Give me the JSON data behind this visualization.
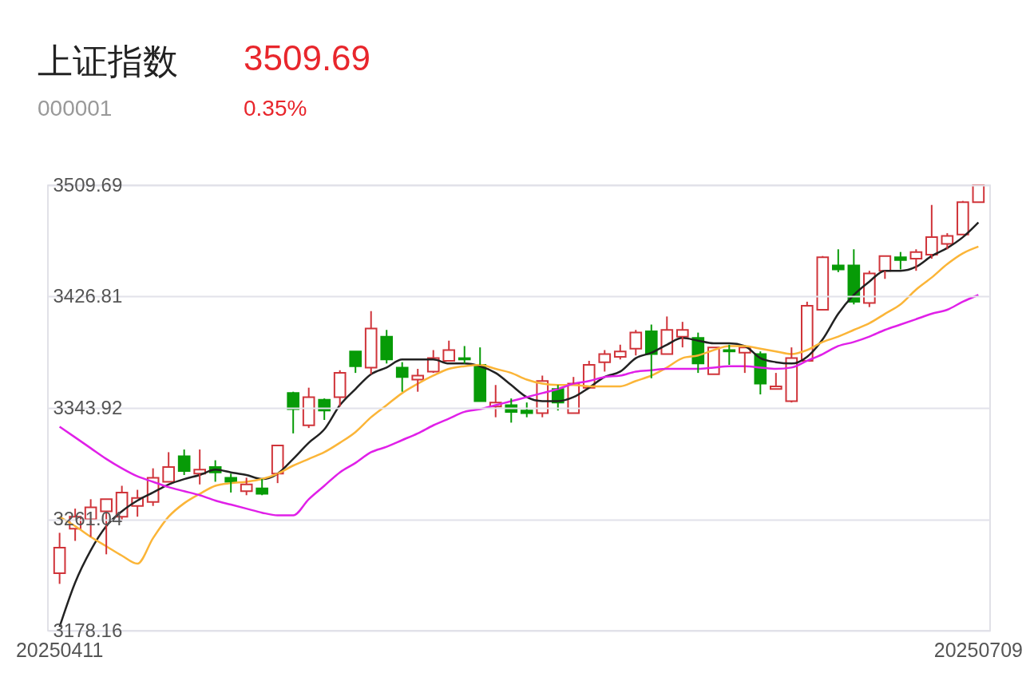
{
  "chart_data": {
    "type": "candlestick",
    "title": "上证指数",
    "subtitle": "000001",
    "annotations": [
      "3509.69",
      "0.35%"
    ],
    "categories": [
      "20250411",
      null,
      null,
      null,
      null,
      null,
      null,
      null,
      null,
      null,
      null,
      null,
      null,
      null,
      null,
      null,
      null,
      null,
      null,
      null,
      null,
      null,
      null,
      null,
      null,
      null,
      null,
      null,
      null,
      null,
      null,
      null,
      null,
      null,
      null,
      null,
      null,
      null,
      null,
      null,
      null,
      null,
      null,
      null,
      null,
      null,
      null,
      null,
      null,
      null,
      null,
      null,
      null,
      null,
      null,
      null,
      null,
      null,
      null,
      "20250709"
    ],
    "ohlc": [
      [
        3221,
        3251,
        3213,
        3240
      ],
      [
        3254,
        3269,
        3245,
        3263
      ],
      [
        3261,
        3276,
        3248,
        3270
      ],
      [
        3267,
        3276,
        3235,
        3276
      ],
      [
        3263,
        3286,
        3260,
        3281
      ],
      [
        3271,
        3283,
        3263,
        3277
      ],
      [
        3274,
        3299,
        3271,
        3292
      ],
      [
        3289,
        3311,
        3289,
        3300
      ],
      [
        3308,
        3313,
        3294,
        3297
      ],
      [
        3295,
        3313,
        3287,
        3298
      ],
      [
        3300,
        3305,
        3289,
        3296
      ],
      [
        3292,
        3295,
        3281,
        3289
      ],
      [
        3282,
        3292,
        3279,
        3287
      ],
      [
        3284,
        3291,
        3279,
        3280
      ],
      [
        3295,
        3316,
        3288,
        3316
      ],
      [
        3355,
        3356,
        3325,
        3343
      ],
      [
        3331,
        3359,
        3329,
        3352
      ],
      [
        3350,
        3351,
        3335,
        3342
      ],
      [
        3352,
        3372,
        3345,
        3370
      ],
      [
        3386,
        3386,
        3370,
        3375
      ],
      [
        3374,
        3416,
        3369,
        3403
      ],
      [
        3397,
        3402,
        3377,
        3380
      ],
      [
        3374,
        3378,
        3356,
        3367
      ],
      [
        3365,
        3373,
        3356,
        3368
      ],
      [
        3371,
        3387,
        3370,
        3381
      ],
      [
        3379,
        3394,
        3379,
        3387
      ],
      [
        3381,
        3390,
        3377,
        3380
      ],
      [
        3376,
        3389,
        3349,
        3349
      ],
      [
        3345,
        3361,
        3337,
        3348
      ],
      [
        3346,
        3351,
        3333,
        3341
      ],
      [
        3342,
        3348,
        3337,
        3340
      ],
      [
        3340,
        3368,
        3337,
        3364
      ],
      [
        3358,
        3361,
        3342,
        3348
      ],
      [
        3340,
        3367,
        3340,
        3362
      ],
      [
        3359,
        3379,
        3359,
        3376
      ],
      [
        3378,
        3387,
        3371,
        3384
      ],
      [
        3382,
        3391,
        3380,
        3386
      ],
      [
        3388,
        3402,
        3383,
        3400
      ],
      [
        3401,
        3406,
        3366,
        3384
      ],
      [
        3384,
        3412,
        3384,
        3402
      ],
      [
        3397,
        3408,
        3389,
        3402
      ],
      [
        3396,
        3400,
        3370,
        3377
      ],
      [
        3369,
        3389,
        3369,
        3389
      ],
      [
        3387,
        3391,
        3376,
        3386
      ],
      [
        3385,
        3389,
        3370,
        3389
      ],
      [
        3384,
        3386,
        3354,
        3362
      ],
      [
        3358,
        3370,
        3358,
        3360
      ],
      [
        3349,
        3389,
        3348,
        3381
      ],
      [
        3379,
        3423,
        3379,
        3420
      ],
      [
        3417,
        3457,
        3417,
        3456
      ],
      [
        3450,
        3462,
        3445,
        3447
      ],
      [
        3450,
        3462,
        3421,
        3423
      ],
      [
        3422,
        3446,
        3419,
        3444
      ],
      [
        3446,
        3457,
        3440,
        3457
      ],
      [
        3456,
        3460,
        3447,
        3454
      ],
      [
        3455,
        3462,
        3446,
        3460
      ],
      [
        3458,
        3495,
        3455,
        3471
      ],
      [
        3466,
        3474,
        3462,
        3472
      ],
      [
        3473,
        3498,
        3473,
        3497
      ],
      [
        3497,
        3509.69,
        3497,
        3509.69
      ]
    ],
    "colors": [
      "#d0343a",
      "#d0343a",
      "#d0343a",
      "#d0343a",
      "#d0343a",
      "#d0343a",
      "#d0343a",
      "#d0343a",
      "#079b07",
      "#d0343a",
      "#079b07",
      "#079b07",
      "#d0343a",
      "#079b07",
      "#d0343a",
      "#079b07",
      "#d0343a",
      "#079b07",
      "#d0343a",
      "#079b07",
      "#d0343a",
      "#079b07",
      "#079b07",
      "#d0343a",
      "#d0343a",
      "#d0343a",
      "#079b07",
      "#079b07",
      "#d0343a",
      "#079b07",
      "#079b07",
      "#d0343a",
      "#079b07",
      "#d0343a",
      "#d0343a",
      "#d0343a",
      "#d0343a",
      "#d0343a",
      "#079b07",
      "#d0343a",
      "#d0343a",
      "#079b07",
      "#d0343a",
      "#079b07",
      "#d0343a",
      "#079b07",
      "#d0343a",
      "#d0343a",
      "#d0343a",
      "#d0343a",
      "#079b07",
      "#079b07",
      "#d0343a",
      "#d0343a",
      "#079b07",
      "#d0343a",
      "#d0343a",
      "#d0343a",
      "#d0343a",
      "#d0343a"
    ],
    "series": [
      {
        "type": "line",
        "color": "#222222",
        "values": [
          3181,
          3214,
          3238,
          3256,
          3267,
          3275,
          3281,
          3287,
          3291,
          3294,
          3298,
          3296,
          3294,
          3291,
          3295,
          3306,
          3318,
          3328,
          3346,
          3358,
          3369,
          3374,
          3380,
          3380,
          3380,
          3377,
          3377,
          3375,
          3370,
          3361,
          3352,
          3349,
          3349,
          3352,
          3359,
          3367,
          3371,
          3381,
          3385,
          3391,
          3396,
          3394,
          3392,
          3392,
          3390,
          3381,
          3378,
          3377,
          3382,
          3395,
          3414,
          3428,
          3438,
          3446,
          3446,
          3449,
          3457,
          3463,
          3471,
          3482
        ]
      },
      {
        "type": "line",
        "color": "#fbb538",
        "values": [
          3263,
          3256,
          3248,
          3241,
          3234,
          3228,
          3247,
          3263,
          3273,
          3280,
          3286,
          3288,
          3289,
          3291,
          3295,
          3301,
          3306,
          3311,
          3318,
          3326,
          3337,
          3346,
          3355,
          3362,
          3368,
          3373,
          3375,
          3376,
          3373,
          3370,
          3365,
          3362,
          3361,
          3361,
          3360,
          3360,
          3360,
          3364,
          3368,
          3374,
          3381,
          3383,
          3387,
          3390,
          3390,
          3388,
          3386,
          3384,
          3387,
          3393,
          3397,
          3402,
          3407,
          3414,
          3421,
          3432,
          3441,
          3451,
          3459,
          3464
        ]
      },
      {
        "type": "line",
        "color": "#e020e8",
        "values": [
          3330,
          3322,
          3314,
          3306,
          3299,
          3293,
          3289,
          3285,
          3282,
          3279,
          3275,
          3272,
          3269,
          3266,
          3264,
          3264,
          3276,
          3286,
          3296,
          3303,
          3311,
          3315,
          3320,
          3325,
          3331,
          3336,
          3341,
          3343,
          3346,
          3349,
          3352,
          3355,
          3358,
          3362,
          3364,
          3367,
          3368,
          3371,
          3372,
          3373,
          3373,
          3373,
          3374,
          3375,
          3375,
          3374,
          3373,
          3374,
          3379,
          3384,
          3390,
          3393,
          3397,
          3402,
          3406,
          3410,
          3414,
          3417,
          3423,
          3428
        ]
      }
    ],
    "ylim": [
      3178.16,
      3509.69
    ],
    "yticks": [
      3178.16,
      3261.04,
      3343.92,
      3426.81,
      3509.69
    ],
    "grid": "y"
  }
}
